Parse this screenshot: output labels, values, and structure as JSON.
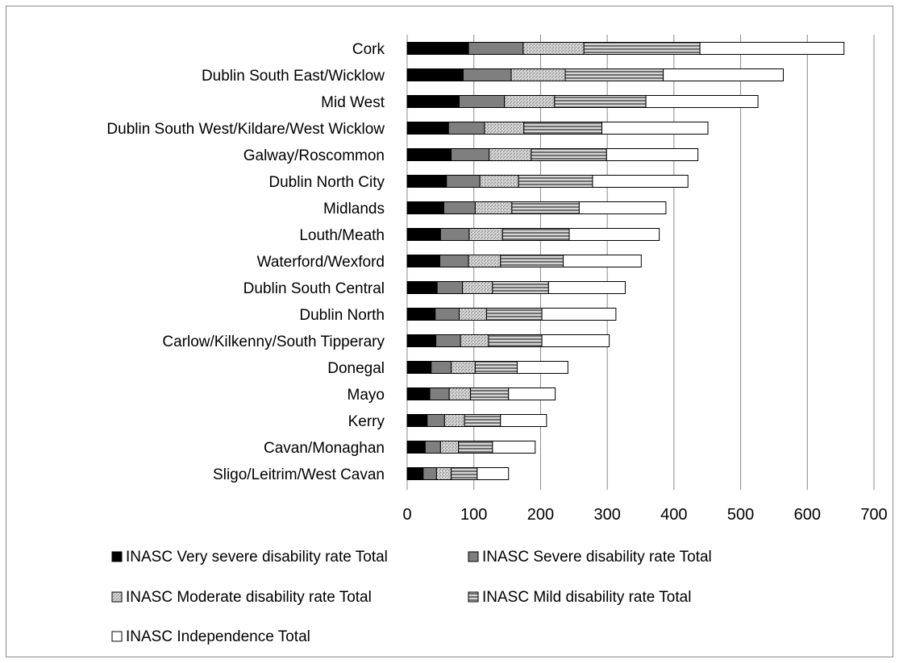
{
  "colors": {
    "very_severe": "#000000",
    "severe": "#7f7f7f",
    "moderate": "#c8c8c8",
    "mild": "#a0a0a0",
    "independence": "#ffffff",
    "gridline": "#8c8c8c",
    "bar_outline": "#000000"
  },
  "chart_data": {
    "type": "bar",
    "orientation": "horizontal",
    "stacked": true,
    "title": "",
    "xlabel": "",
    "ylabel": "",
    "xlim": [
      0,
      700
    ],
    "x_ticks": [
      "0",
      "100",
      "200",
      "300",
      "400",
      "500",
      "600",
      "700"
    ],
    "grid": "vertical gridlines",
    "legend_position": "bottom",
    "categories": [
      "Cork",
      "Dublin South East/Wicklow",
      "Mid West",
      "Dublin South West/Kildare/West Wicklow",
      "Galway/Roscommon",
      "Dublin North City",
      "Midlands",
      "Louth/Meath",
      "Waterford/Wexford",
      "Dublin South Central",
      "Dublin North",
      "Carlow/Kilkenny/South Tipperary",
      "Donegal",
      "Mayo",
      "Kerry",
      "Cavan/Monaghan",
      "Sligo/Leitrim/West Cavan"
    ],
    "series": [
      {
        "name": "INASC Very severe disability rate Total",
        "pattern": "solid",
        "values": [
          92,
          84,
          78,
          62,
          66,
          59,
          55,
          50,
          49,
          45,
          42,
          43,
          36,
          34,
          30,
          27,
          24
        ]
      },
      {
        "name": "INASC Severe disability rate  Total",
        "pattern": "solid",
        "values": [
          82,
          72,
          68,
          54,
          57,
          50,
          47,
          43,
          43,
          38,
          36,
          37,
          30,
          29,
          26,
          23,
          20
        ]
      },
      {
        "name": "INASC Moderate disability rate  Total",
        "pattern": "dotted",
        "values": [
          91,
          81,
          75,
          59,
          63,
          58,
          55,
          50,
          48,
          45,
          41,
          42,
          36,
          32,
          30,
          27,
          22
        ]
      },
      {
        "name": "INASC Mild disability rate  Total",
        "pattern": "striped",
        "values": [
          174,
          147,
          137,
          117,
          113,
          111,
          101,
          100,
          94,
          84,
          83,
          80,
          63,
          57,
          54,
          51,
          39
        ]
      },
      {
        "name": "INASC Independence  Total",
        "pattern": "none",
        "values": [
          216,
          180,
          168,
          159,
          137,
          143,
          130,
          135,
          117,
          115,
          111,
          101,
          76,
          70,
          69,
          64,
          47
        ]
      }
    ]
  }
}
